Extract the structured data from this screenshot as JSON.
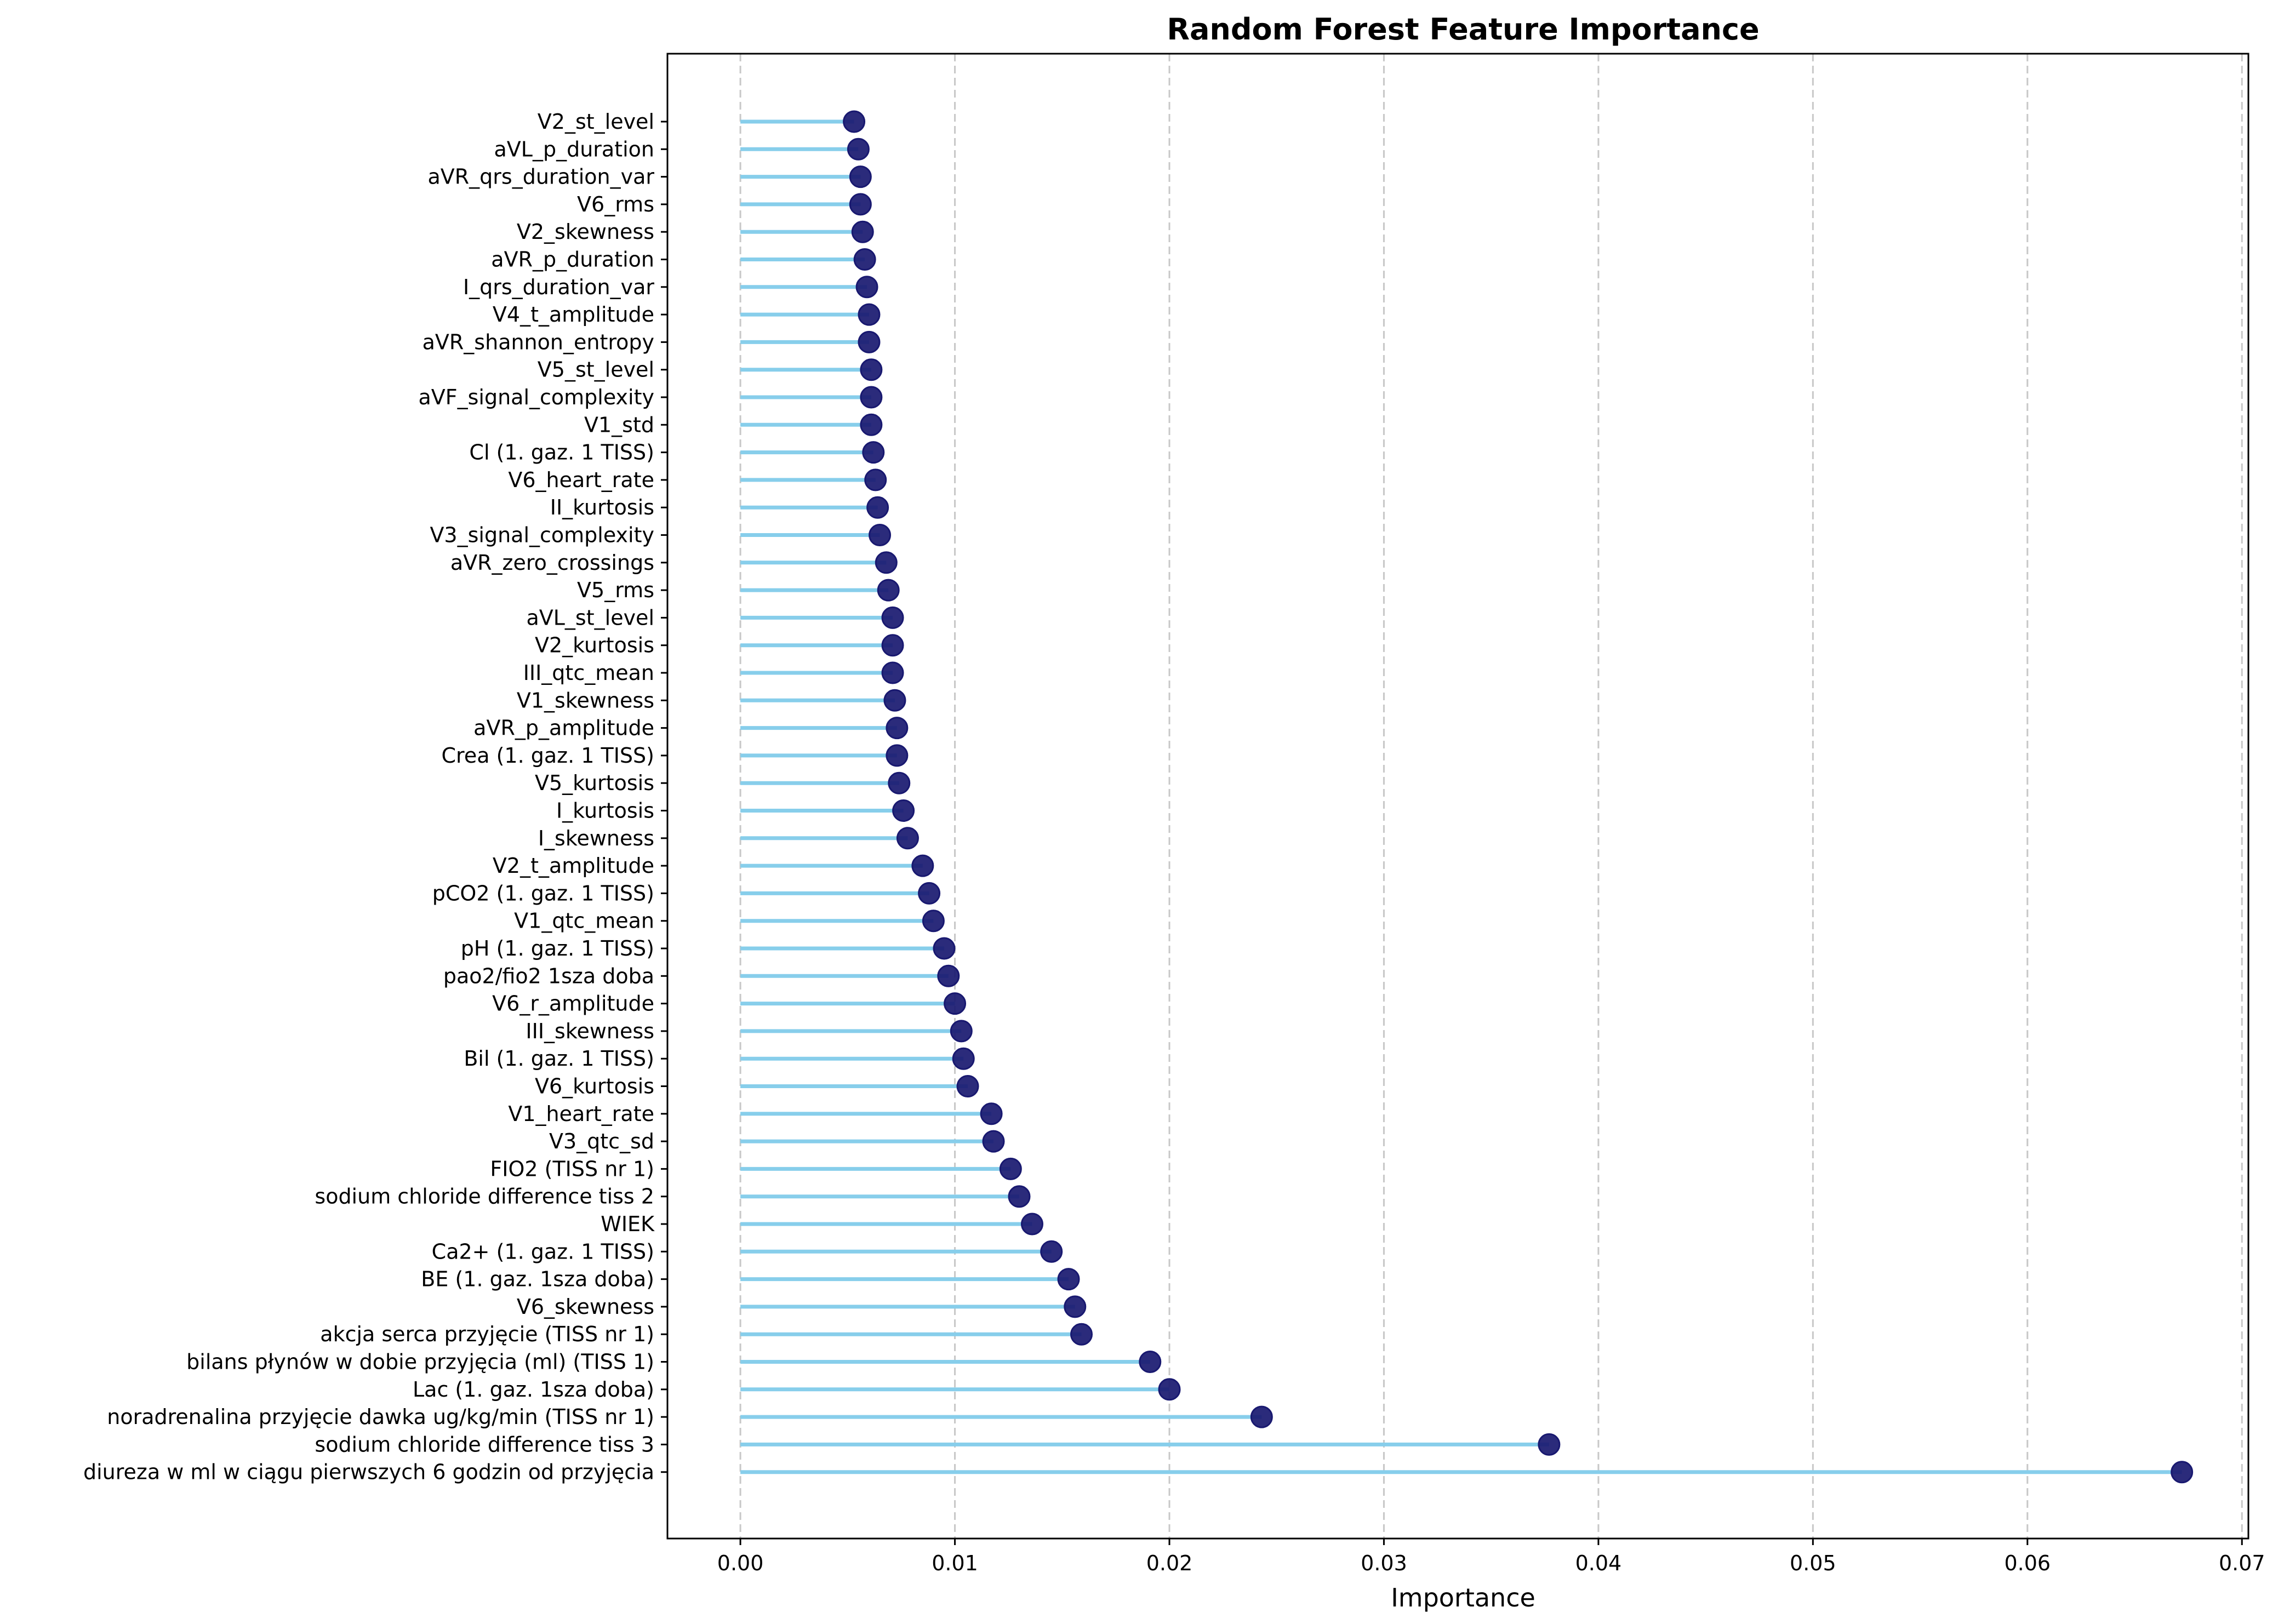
{
  "chart_data": {
    "type": "lollipop",
    "title": "Random Forest Feature Importance",
    "xlabel": "Importance",
    "ylabel": "",
    "xlim": [
      -0.0034,
      0.0703
    ],
    "xticks": [
      0.0,
      0.01,
      0.02,
      0.03,
      0.04,
      0.05,
      0.06,
      0.07
    ],
    "xtick_labels": [
      "0.00",
      "0.01",
      "0.02",
      "0.03",
      "0.04",
      "0.05",
      "0.06",
      "0.07"
    ],
    "grid": {
      "x": true,
      "y": false,
      "style": "dashed"
    },
    "colors": {
      "stem": "#87CEEB",
      "marker": "#191970"
    },
    "categories": [
      "V2_st_level",
      "aVL_p_duration",
      "aVR_qrs_duration_var",
      "V6_rms",
      "V2_skewness",
      "aVR_p_duration",
      "I_qrs_duration_var",
      "V4_t_amplitude",
      "aVR_shannon_entropy",
      "V5_st_level",
      "aVF_signal_complexity",
      "V1_std",
      "Cl (1. gaz. 1 TISS)",
      "V6_heart_rate",
      "II_kurtosis",
      "V3_signal_complexity",
      "aVR_zero_crossings",
      "V5_rms",
      "aVL_st_level",
      "V2_kurtosis",
      "III_qtc_mean",
      "V1_skewness",
      "aVR_p_amplitude",
      "Crea (1. gaz. 1 TISS)",
      "V5_kurtosis",
      "I_kurtosis",
      "I_skewness",
      "V2_t_amplitude",
      "pCO2 (1. gaz. 1 TISS)",
      "V1_qtc_mean",
      "pH (1. gaz. 1 TISS)",
      "pao2/fio2 1sza doba",
      "V6_r_amplitude",
      "III_skewness",
      "Bil (1. gaz. 1 TISS)",
      "V6_kurtosis",
      "V1_heart_rate",
      "V3_qtc_sd",
      "FIO2 (TISS nr 1)",
      "sodium chloride difference tiss 2",
      "WIEK",
      "Ca2+ (1. gaz. 1 TISS)",
      "BE (1. gaz. 1sza doba)",
      "V6_skewness",
      "akcja serca przyjęcie (TISS nr 1)",
      "bilans płynów w dobie przyjęcia (ml) (TISS 1)",
      "Lac (1. gaz. 1sza doba)",
      "noradrenalina przyjęcie dawka ug/kg/min (TISS nr 1)",
      "sodium chloride difference tiss 3",
      "diureza w ml w ciągu pierwszych 6 godzin od przyjęcia "
    ],
    "values": [
      0.0053,
      0.0055,
      0.0056,
      0.0056,
      0.0057,
      0.0058,
      0.0059,
      0.006,
      0.006,
      0.0061,
      0.0061,
      0.0061,
      0.0062,
      0.0063,
      0.0064,
      0.0065,
      0.0068,
      0.0069,
      0.0071,
      0.0071,
      0.0071,
      0.0072,
      0.0073,
      0.0073,
      0.0074,
      0.0076,
      0.0078,
      0.0085,
      0.0088,
      0.009,
      0.0095,
      0.0097,
      0.01,
      0.0103,
      0.0104,
      0.0106,
      0.0117,
      0.0118,
      0.0126,
      0.013,
      0.0136,
      0.0145,
      0.0153,
      0.0156,
      0.0159,
      0.0191,
      0.02,
      0.0243,
      0.0377,
      0.0672
    ]
  }
}
